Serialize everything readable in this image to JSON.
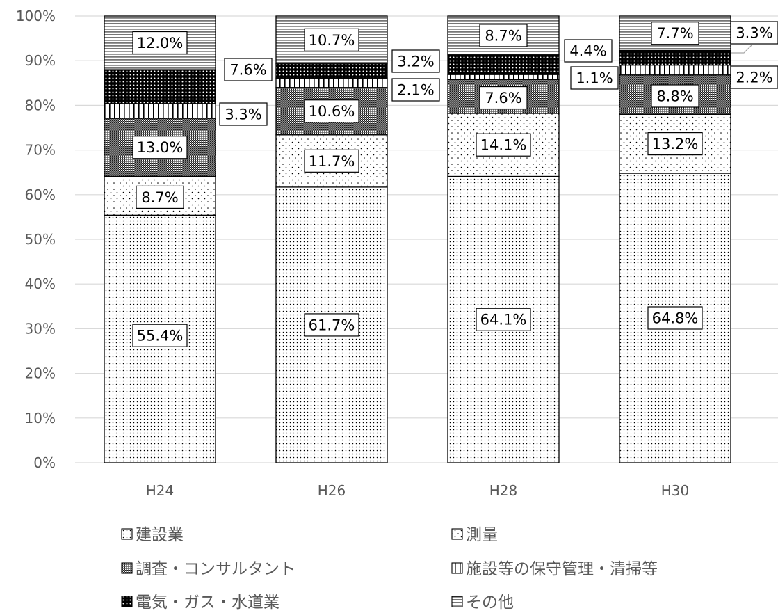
{
  "chart_data": {
    "type": "bar",
    "stacked": true,
    "title": "",
    "xlabel": "",
    "ylabel": "",
    "categories": [
      "H24",
      "H26",
      "H28",
      "H30"
    ],
    "ylim": [
      0,
      100
    ],
    "yticks": [
      0,
      10,
      20,
      30,
      40,
      50,
      60,
      70,
      80,
      90,
      100
    ],
    "ytick_labels": [
      "0%",
      "10%",
      "20%",
      "30%",
      "40%",
      "50%",
      "60%",
      "70%",
      "80%",
      "90%",
      "100%"
    ],
    "grid": true,
    "legend_position": "bottom",
    "series": [
      {
        "name": "建設業",
        "values": [
          55.4,
          61.7,
          64.1,
          64.8
        ],
        "labels": [
          "55.4%",
          "61.7%",
          "64.1%",
          "64.8%"
        ],
        "pattern": "dense-dots"
      },
      {
        "name": "測量",
        "values": [
          8.7,
          11.7,
          14.1,
          13.2
        ],
        "labels": [
          "8.7%",
          "11.7%",
          "14.1%",
          "13.2%"
        ],
        "pattern": "sparse-dots"
      },
      {
        "name": "調査・コンサルタント",
        "values": [
          13.0,
          10.6,
          7.6,
          8.8
        ],
        "labels": [
          "13.0%",
          "10.6%",
          "7.6%",
          "8.8%"
        ],
        "pattern": "checker"
      },
      {
        "name": "施設等の保守管理・清掃等",
        "values": [
          3.3,
          2.1,
          1.1,
          2.2
        ],
        "labels": [
          "3.3%",
          "2.1%",
          "1.1%",
          "2.2%"
        ],
        "pattern": "vertical-lines"
      },
      {
        "name": "電気・ガス・水道業",
        "values": [
          7.6,
          3.2,
          4.4,
          3.3
        ],
        "labels": [
          "7.6%",
          "3.2%",
          "4.4%",
          "3.3%"
        ],
        "pattern": "dark-dots"
      },
      {
        "name": "その他",
        "values": [
          12.0,
          10.7,
          8.7,
          7.7
        ],
        "labels": [
          "12.0%",
          "10.7%",
          "8.7%",
          "7.7%"
        ],
        "pattern": "horizontal-lines"
      }
    ]
  }
}
